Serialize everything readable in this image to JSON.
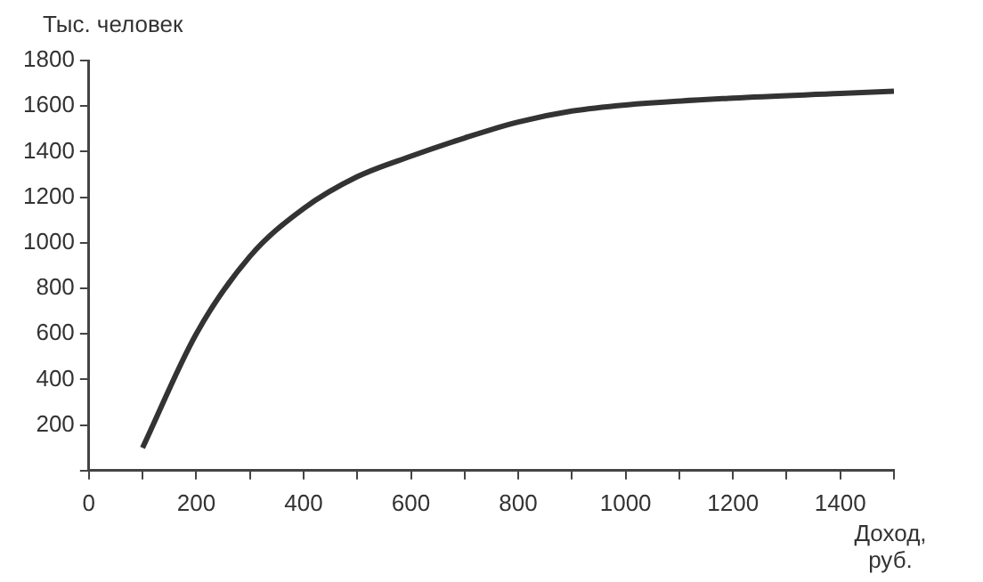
{
  "chart_data": {
    "type": "line",
    "ylabel": "Тыс. человек",
    "xlabel": "Доход, руб.",
    "x": [
      100,
      200,
      300,
      400,
      500,
      600,
      700,
      800,
      900,
      1000,
      1200,
      1400,
      1500
    ],
    "series": [
      {
        "color": "#333333",
        "values": [
          100,
          600,
          940,
          1150,
          1290,
          1380,
          1460,
          1530,
          1578,
          1605,
          1635,
          1655,
          1665
        ]
      }
    ],
    "xlim": [
      0,
      1500
    ],
    "xticks": [
      {
        "value": 0,
        "label": "0"
      },
      {
        "value": 100,
        "label": null
      },
      200,
      {
        "value": 300,
        "label": null
      },
      400,
      {
        "value": 500,
        "label": null
      },
      600,
      {
        "value": 700,
        "label": null
      },
      800,
      {
        "value": 900,
        "label": null
      },
      1000,
      {
        "value": 1100,
        "label": null
      },
      1200,
      {
        "value": 1300,
        "label": null
      },
      1400,
      {
        "value": 1500,
        "label": null
      }
    ],
    "ylim": [
      0,
      1800
    ],
    "yticks": [
      {
        "value": 0,
        "label": null
      },
      200,
      400,
      600,
      800,
      1000,
      1200,
      1400,
      1600,
      1800
    ],
    "grid": false,
    "legend": false,
    "marker": "none",
    "line_style": "solid"
  }
}
